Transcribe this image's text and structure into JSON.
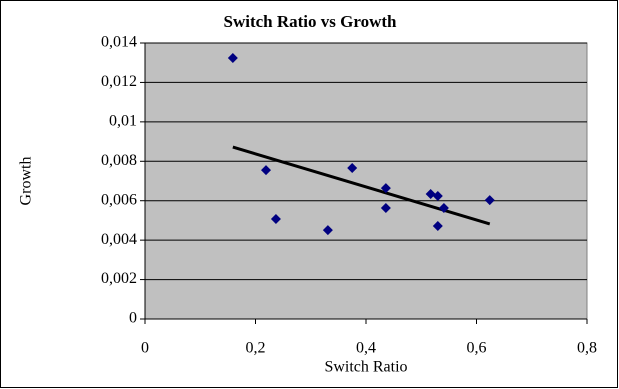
{
  "chart_data": {
    "type": "scatter",
    "title": "Switch Ratio vs Growth",
    "x_label": "Switch Ratio",
    "y_label": "Growth",
    "series": [
      {
        "name": "Growth",
        "color": "#000080",
        "x": [
          0.159,
          0.219,
          0.237,
          0.331,
          0.375,
          0.436,
          0.436,
          0.517,
          0.53,
          0.541,
          0.53,
          0.624
        ],
        "values": [
          0.01324,
          0.00755,
          0.00507,
          0.00451,
          0.00766,
          0.00664,
          0.00563,
          0.00634,
          0.00624,
          0.00563,
          0.00472,
          0.00603
        ]
      }
    ],
    "trendline": true,
    "trendline_color": "#000000",
    "xlim": [
      0,
      0.8
    ],
    "xticks": [
      0,
      {
        "value": 0.2,
        "label": "0,2"
      },
      {
        "value": 0.4,
        "label": "0,4"
      },
      {
        "value": 0.6,
        "label": "0,6"
      },
      {
        "value": 0.8,
        "label": "0,8"
      }
    ],
    "ylim": [
      0,
      0.014
    ],
    "yticks": [
      0,
      {
        "value": 0.002,
        "label": "0,002"
      },
      {
        "value": 0.004,
        "label": "0,004"
      },
      {
        "value": 0.006,
        "label": "0,006"
      },
      {
        "value": 0.008,
        "label": "0,008"
      },
      {
        "value": 0.01,
        "label": "0,01"
      },
      {
        "value": 0.012,
        "label": "0,012"
      },
      {
        "value": 0.014,
        "label": "0,014"
      }
    ],
    "grid": true,
    "plot_background": "#c0c0c0"
  }
}
